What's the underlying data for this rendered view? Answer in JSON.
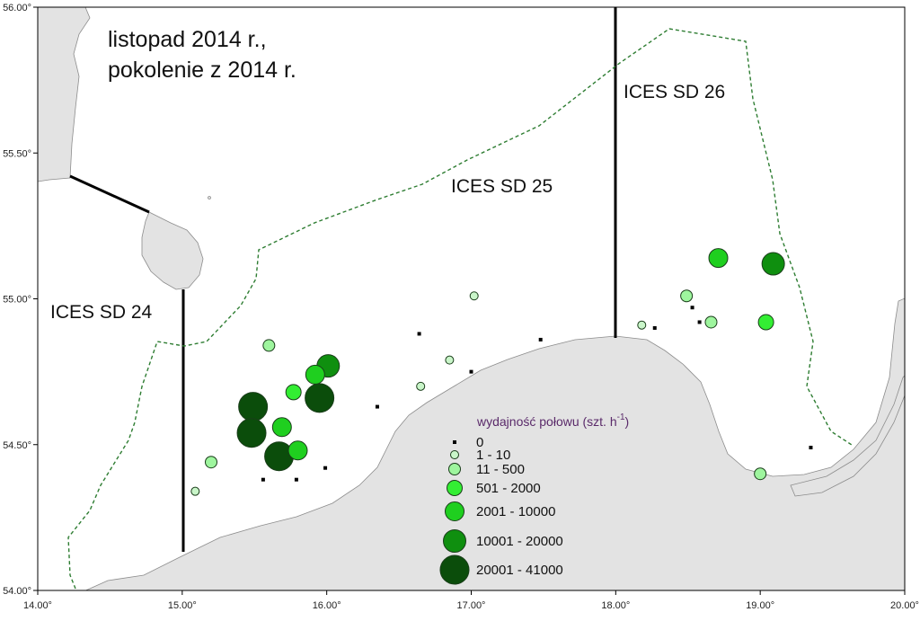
{
  "map": {
    "title_line1": "listopad 2014 r.,",
    "title_line2": "pokolenie z 2014 r.",
    "regions": [
      "ICES SD 24",
      "ICES SD 25",
      "ICES SD 26"
    ],
    "x_ticks": [
      "14.00°",
      "15.00°",
      "16.00°",
      "17.00°",
      "18.00°",
      "19.00°",
      "20.00°"
    ],
    "y_ticks": [
      "56.00°",
      "55.50°",
      "55.00°",
      "54.50°",
      "54.00°"
    ],
    "extent": {
      "lon": [
        14.0,
        20.0
      ],
      "lat": [
        54.0,
        56.0
      ]
    },
    "colors": {
      "land": "#e3e3e3",
      "coast": "#8c8c8c",
      "dashed_boundary": "#2e7d32",
      "class_0": "#000000",
      "class_1": "#c9f5c9",
      "class_2": "#9ef59e",
      "class_3": "#33ee33",
      "class_4": "#1fcf1f",
      "class_5": "#0f8f0f",
      "class_6": "#0b4d0b"
    },
    "legend": {
      "title": "wydajność połowu (szt. h",
      "title_sup": "-1",
      "title_end": ")",
      "classes": [
        "0",
        "1 - 10",
        "11 - 500",
        "501 - 2000",
        "2001 - 10000",
        "10001 - 20000",
        "20001 - 41000"
      ]
    },
    "stations": [
      {
        "lon": 15.49,
        "lat": 54.63,
        "cls": 6
      },
      {
        "lon": 15.48,
        "lat": 54.54,
        "cls": 6
      },
      {
        "lon": 15.67,
        "lat": 54.46,
        "cls": 6
      },
      {
        "lon": 15.95,
        "lat": 54.66,
        "cls": 6
      },
      {
        "lon": 16.01,
        "lat": 54.77,
        "cls": 5
      },
      {
        "lon": 15.92,
        "lat": 54.74,
        "cls": 4
      },
      {
        "lon": 15.69,
        "lat": 54.56,
        "cls": 4
      },
      {
        "lon": 15.8,
        "lat": 54.48,
        "cls": 4
      },
      {
        "lon": 15.77,
        "lat": 54.68,
        "cls": 3
      },
      {
        "lon": 18.71,
        "lat": 55.14,
        "cls": 4
      },
      {
        "lon": 19.09,
        "lat": 55.12,
        "cls": 5
      },
      {
        "lon": 19.04,
        "lat": 54.92,
        "cls": 3
      },
      {
        "lon": 15.6,
        "lat": 54.84,
        "cls": 2
      },
      {
        "lon": 15.2,
        "lat": 54.44,
        "cls": 2
      },
      {
        "lon": 18.66,
        "lat": 54.92,
        "cls": 2
      },
      {
        "lon": 18.49,
        "lat": 55.01,
        "cls": 2
      },
      {
        "lon": 19.0,
        "lat": 54.4,
        "cls": 2
      },
      {
        "lon": 15.09,
        "lat": 54.34,
        "cls": 1
      },
      {
        "lon": 17.02,
        "lat": 55.01,
        "cls": 1
      },
      {
        "lon": 16.85,
        "lat": 54.79,
        "cls": 1
      },
      {
        "lon": 16.65,
        "lat": 54.7,
        "cls": 1
      },
      {
        "lon": 18.18,
        "lat": 54.91,
        "cls": 1
      },
      {
        "lon": 16.64,
        "lat": 54.88,
        "cls": 0
      },
      {
        "lon": 17.0,
        "lat": 54.75,
        "cls": 0
      },
      {
        "lon": 16.35,
        "lat": 54.63,
        "cls": 0
      },
      {
        "lon": 17.48,
        "lat": 54.86,
        "cls": 0
      },
      {
        "lon": 15.56,
        "lat": 54.38,
        "cls": 0
      },
      {
        "lon": 15.79,
        "lat": 54.38,
        "cls": 0
      },
      {
        "lon": 15.99,
        "lat": 54.42,
        "cls": 0
      },
      {
        "lon": 18.27,
        "lat": 54.9,
        "cls": 0
      },
      {
        "lon": 18.53,
        "lat": 54.97,
        "cls": 0
      },
      {
        "lon": 18.58,
        "lat": 54.92,
        "cls": 0
      },
      {
        "lon": 19.35,
        "lat": 54.49,
        "cls": 0
      }
    ]
  }
}
